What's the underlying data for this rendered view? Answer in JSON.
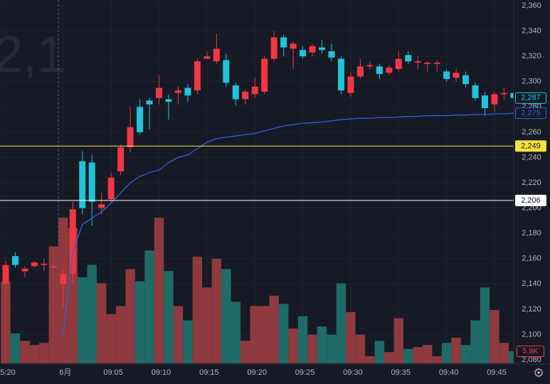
{
  "chart_data": {
    "type": "candlestick",
    "watermark": "2,1",
    "categories": [
      "5:20",
      null,
      null,
      null,
      null,
      null,
      "6月",
      null,
      null,
      null,
      null,
      "09:05",
      null,
      null,
      null,
      null,
      "09:10",
      null,
      null,
      null,
      null,
      "09:15",
      null,
      null,
      null,
      null,
      "09:20",
      null,
      null,
      null,
      null,
      "09:25",
      null,
      null,
      null,
      null,
      "09:30",
      null,
      null,
      null,
      null,
      "09:35",
      null,
      null,
      null,
      null,
      "09:40",
      null,
      null,
      null,
      null,
      "09:45",
      null,
      null
    ],
    "open": [
      2140,
      2162,
      2150,
      2154,
      2155,
      2153,
      2140,
      2148,
      2237,
      2236,
      2200,
      2207,
      2229,
      2248,
      2280,
      2285,
      2287,
      2286,
      2291,
      2295,
      2293,
      2318,
      2316,
      2317,
      2297,
      2286,
      2290,
      2292,
      2318,
      2335,
      2326,
      2325,
      2323,
      2327,
      2324,
      2318,
      2291,
      2304,
      2312,
      2312,
      2307,
      2310,
      2321,
      2315,
      2314,
      2314,
      2308,
      2303,
      2305,
      2297,
      2289,
      2282,
      2290,
      2291
    ],
    "high": [
      2158,
      2165,
      2154,
      2158,
      2160,
      2156,
      2152,
      2205,
      2245,
      2242,
      2212,
      2228,
      2250,
      2280,
      2286,
      2287,
      2305,
      2290,
      2296,
      2298,
      2318,
      2324,
      2338,
      2322,
      2299,
      2294,
      2303,
      2320,
      2340,
      2337,
      2332,
      2328,
      2330,
      2333,
      2330,
      2320,
      2308,
      2318,
      2316,
      2314,
      2313,
      2324,
      2324,
      2320,
      2316,
      2317,
      2310,
      2310,
      2308,
      2299,
      2292,
      2292,
      2295,
      2292
    ],
    "low": [
      2130,
      2153,
      2145,
      2153,
      2150,
      2152,
      2120,
      2140,
      2195,
      2186,
      2195,
      2205,
      2226,
      2244,
      2258,
      2262,
      2282,
      2270,
      2282,
      2284,
      2290,
      2318,
      2314,
      2296,
      2281,
      2282,
      2287,
      2290,
      2316,
      2320,
      2310,
      2318,
      2320,
      2322,
      2316,
      2290,
      2288,
      2302,
      2310,
      2302,
      2305,
      2308,
      2314,
      2310,
      2308,
      2308,
      2300,
      2300,
      2295,
      2285,
      2273,
      2276,
      2286,
      2285
    ],
    "close": [
      2155,
      2155,
      2152,
      2157,
      2156,
      2154,
      2148,
      2199,
      2200,
      2205,
      2203,
      2224,
      2248,
      2264,
      2260,
      2282,
      2295,
      2284,
      2293,
      2289,
      2316,
      2320,
      2326,
      2299,
      2286,
      2292,
      2296,
      2318,
      2335,
      2327,
      2330,
      2320,
      2328,
      2325,
      2319,
      2293,
      2304,
      2312,
      2313,
      2306,
      2311,
      2318,
      2316,
      2316,
      2315,
      2315,
      2302,
      2307,
      2298,
      2287,
      2279,
      2290,
      2291,
      2287
    ],
    "volume": [
      40,
      14.6,
      11,
      9,
      10,
      57,
      71,
      66,
      42,
      48,
      39,
      24,
      28,
      46,
      40,
      55,
      71,
      45,
      28,
      21,
      52,
      37,
      51,
      46,
      30,
      11,
      28,
      28,
      33,
      29,
      17,
      23,
      14,
      18,
      14,
      39,
      25,
      14,
      3.5,
      11,
      5.5,
      22,
      7,
      8,
      9,
      3.5,
      10,
      12.5,
      9,
      21,
      37,
      26,
      10,
      5.9
    ],
    "vwap": [
      null,
      null,
      null,
      null,
      null,
      null,
      2100,
      2165,
      2187,
      2192,
      2197,
      2204,
      2212,
      2220,
      2225,
      2228,
      2230,
      2236,
      2240,
      2242,
      2247,
      2252,
      2255,
      2256,
      2257,
      2258,
      2259,
      2261,
      2263,
      2265,
      2266,
      2267,
      2267.5,
      2268,
      2269,
      2270,
      2270.5,
      2271,
      2271,
      2271.5,
      2271.5,
      2272,
      2272.5,
      2272.5,
      2273,
      2273,
      2273,
      2273.5,
      2273.5,
      2274,
      2274,
      2274.5,
      2274.5,
      2275
    ],
    "up_color": "#f23645",
    "down_color": "#22c3d8",
    "volume_up_color": "#8e3a3e",
    "volume_down_color": "#1f6b69",
    "vwap_color": "#2f5fe0",
    "ylim": [
      2080,
      2360
    ],
    "yticks": [
      {
        "value": 2080,
        "label": "2,080"
      },
      {
        "value": 2100,
        "label": "2,100"
      },
      {
        "value": 2120,
        "label": "2,120"
      },
      {
        "value": 2140,
        "label": "2,140"
      },
      {
        "value": 2160,
        "label": "2,160"
      },
      {
        "value": 2180,
        "label": "2,180"
      },
      {
        "value": 2200,
        "label": "2,200"
      },
      {
        "value": 2220,
        "label": "2,220"
      },
      {
        "value": 2240,
        "label": "2,240"
      },
      {
        "value": 2260,
        "label": "2,260"
      },
      {
        "value": 2280,
        "label": "2,280"
      },
      {
        "value": 2300,
        "label": "2,300"
      },
      {
        "value": 2320,
        "label": "2,320"
      },
      {
        "value": 2340,
        "label": "2,340"
      },
      {
        "value": 2360,
        "label": "2,360"
      }
    ],
    "volume_ylim": [
      0,
      104
    ],
    "grid": true,
    "horizontal_lines": [
      {
        "value": 2249,
        "label": "2,249",
        "color": "#f5e042"
      },
      {
        "value": 2206,
        "label": "2,206",
        "color": "#ffffff"
      }
    ],
    "axis_labels": [
      {
        "value": 2287,
        "label": "2,287",
        "color": "#22c3d8"
      },
      {
        "value": 2275,
        "label": "2,275",
        "color": "#2f5fe0"
      }
    ],
    "volume_label": {
      "value": 5.9,
      "label": "5.9K",
      "color": "#f23645"
    }
  }
}
